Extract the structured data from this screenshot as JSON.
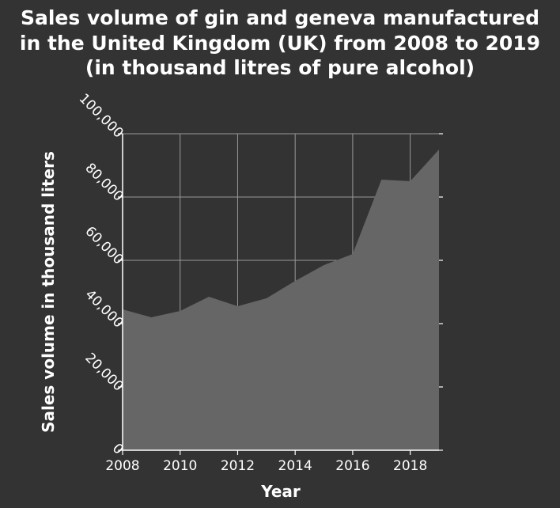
{
  "chart_data": {
    "type": "area",
    "title_lines": [
      "Sales volume of gin and geneva manufactured",
      "in the United Kingdom (UK) from 2008 to 2019",
      "(in thousand litres of pure alcohol)"
    ],
    "xlabel": "Year",
    "ylabel": "Sales volume in thousand liters",
    "x": [
      2008,
      2009,
      2010,
      2011,
      2012,
      2013,
      2014,
      2015,
      2016,
      2017,
      2018,
      2019
    ],
    "values": [
      44500,
      42000,
      44000,
      48500,
      45500,
      48000,
      53500,
      58500,
      62000,
      85500,
      85000,
      95000
    ],
    "xlim": [
      2008,
      2019
    ],
    "ylim": [
      0,
      100000
    ],
    "x_ticks": [
      2008,
      2010,
      2012,
      2014,
      2016,
      2018
    ],
    "x_tick_labels": [
      "2008",
      "2010",
      "2012",
      "2014",
      "2016",
      "2018"
    ],
    "y_ticks": [
      0,
      20000,
      40000,
      60000,
      80000,
      100000
    ],
    "y_tick_labels": [
      "0",
      "20,000",
      "40,000",
      "60,000",
      "80,000",
      "100,000"
    ],
    "grid": true,
    "colors": {
      "background": "#333333",
      "plot_background": "#333333",
      "area_fill": "#666666",
      "grid": "#999999",
      "text": "#ffffff"
    }
  }
}
